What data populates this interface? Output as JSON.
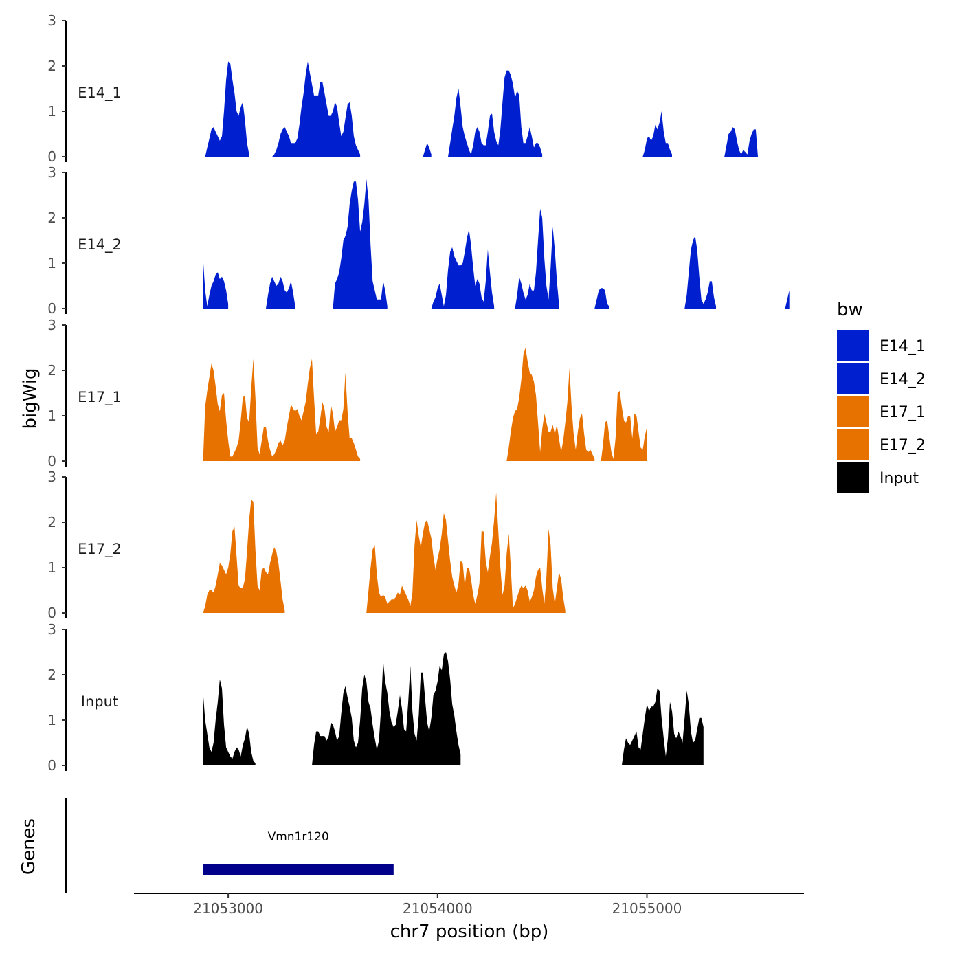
{
  "chart_data": {
    "type": "area",
    "xlabel": "chr7 position (bp)",
    "ylabel": "bigWig",
    "genes_label": "Genes",
    "xlim": [
      21052550,
      21055750
    ],
    "ylim": [
      0,
      3
    ],
    "y_ticks": [
      "0",
      "1",
      "2",
      "3"
    ],
    "x_ticks": [
      {
        "value": 21053000,
        "label": "21053000"
      },
      {
        "value": 21054000,
        "label": "21054000"
      },
      {
        "value": 21055000,
        "label": "21055000"
      }
    ],
    "legend": {
      "title": "bw",
      "entries": [
        "E14_1",
        "E14_2",
        "E17_1",
        "E17_2",
        "Input"
      ]
    },
    "colors": {
      "E14_1": "#0020D0",
      "E14_2": "#0020D0",
      "E17_1": "#E87200",
      "E17_2": "#E87200",
      "Input": "#000000",
      "gene": "#00008B"
    },
    "x_start": 21052880,
    "x_step": 10,
    "series": [
      {
        "name": "E14_1",
        "label": "E14_1",
        "segments": [
          {
            "start": 21052890,
            "values": [
              0,
              0.2,
              0.4,
              0.6,
              0.65,
              0.55,
              0.45,
              0.35,
              0.45,
              1.0,
              1.7,
              2.1,
              2.05,
              1.7,
              1.4,
              1.0,
              0.9,
              1.1,
              1.2,
              0.8,
              0.3,
              0.05
            ]
          },
          {
            "start": 21053210,
            "values": [
              0,
              0.05,
              0.15,
              0.3,
              0.5,
              0.6,
              0.65,
              0.55,
              0.45,
              0.3,
              0.3,
              0.3,
              0.4,
              0.7,
              1.1,
              1.4,
              1.8,
              2.1,
              1.85,
              1.6,
              1.35,
              1.35,
              1.35,
              1.65,
              1.65,
              1.4,
              1.15,
              0.9,
              0.9,
              1.0,
              1.2,
              1.1,
              0.75,
              0.45,
              0.55,
              0.85,
              1.15,
              1.2,
              0.9,
              0.45,
              0.25,
              0.15,
              0.05
            ]
          },
          {
            "start": 21053930,
            "values": [
              0,
              0.15,
              0.3,
              0.2,
              0.05
            ]
          },
          {
            "start": 21054050,
            "values": [
              0,
              0.3,
              0.6,
              0.9,
              1.3,
              1.5,
              1.1,
              0.65,
              0.45,
              0.3,
              0.15,
              0.05,
              0.25,
              0.55,
              0.65,
              0.55,
              0.3,
              0.25,
              0.25,
              0.55,
              0.9,
              0.95,
              0.55,
              0.35,
              0.25,
              0.6,
              1.2,
              1.75,
              1.9,
              1.9,
              1.8,
              1.6,
              1.3,
              1.45,
              1.35,
              0.65,
              0.3,
              0.3,
              0.45,
              0.65,
              0.45,
              0.2,
              0.3,
              0.3,
              0.2,
              0.05
            ]
          },
          {
            "start": 21054980,
            "values": [
              0,
              0.15,
              0.4,
              0.45,
              0.35,
              0.45,
              0.7,
              0.6,
              0.75,
              1.0,
              0.55,
              0.3,
              0.3,
              0.15,
              0.05
            ]
          },
          {
            "start": 21055370,
            "values": [
              0,
              0.25,
              0.5,
              0.55,
              0.65,
              0.6,
              0.35,
              0.15,
              0.05,
              0.15,
              0.1,
              0.05,
              0.35,
              0.5,
              0.6,
              0.6,
              0
            ]
          }
        ]
      },
      {
        "name": "E14_2",
        "label": "E14_2",
        "segments": [
          {
            "start": 21052880,
            "values": [
              1.1,
              0.4,
              0.05,
              0.3,
              0.5,
              0.6,
              0.75,
              0.8,
              0.65,
              0.7,
              0.6,
              0.4,
              0.1
            ]
          },
          {
            "start": 21053180,
            "values": [
              0,
              0.3,
              0.55,
              0.7,
              0.6,
              0.5,
              0.55,
              0.7,
              0.6,
              0.4,
              0.35,
              0.45,
              0.6,
              0.35,
              0.05
            ]
          },
          {
            "start": 21053500,
            "values": [
              0,
              0.55,
              0.65,
              0.8,
              1.1,
              1.5,
              1.6,
              1.8,
              2.3,
              2.6,
              2.8,
              2.8,
              2.4,
              1.7,
              1.9,
              2.3,
              2.85,
              2.4,
              1.4,
              0.6,
              0.4,
              0.2,
              0.2,
              0.2,
              0.6,
              0.4,
              0.05
            ]
          },
          {
            "start": 21053970,
            "values": [
              0,
              0.15,
              0.25,
              0.45,
              0.55,
              0.3,
              0.05,
              0.3,
              0.85,
              1.25,
              1.35,
              1.15,
              1.05,
              0.95,
              0.95,
              1.0,
              1.25,
              1.55,
              1.75,
              1.4,
              0.9,
              0.5,
              0.65,
              0.55,
              0.25,
              0.15,
              0.6,
              1.3,
              0.8,
              0.35,
              0.05
            ]
          },
          {
            "start": 21054370,
            "values": [
              0,
              0.3,
              0.7,
              0.55,
              0.35,
              0.2,
              0.3,
              0.55,
              0.4,
              0.4,
              0.8,
              1.5,
              2.2,
              2.0,
              1.1,
              0.5,
              0.2,
              0.9,
              1.8,
              1.3,
              0.6,
              0.1
            ]
          },
          {
            "start": 21054750,
            "values": [
              0,
              0.2,
              0.4,
              0.45,
              0.45,
              0.4,
              0.1,
              0.05
            ]
          },
          {
            "start": 21055180,
            "values": [
              0,
              0.3,
              0.8,
              1.3,
              1.5,
              1.6,
              1.3,
              0.7,
              0.2,
              0.1,
              0.2,
              0.35,
              0.6,
              0.6,
              0.25,
              0.05
            ]
          },
          {
            "start": 21055660,
            "values": [
              0,
              0.2,
              0.4
            ]
          }
        ]
      },
      {
        "name": "E17_1",
        "label": "E17_1",
        "segments": [
          {
            "start": 21052880,
            "values": [
              0,
              1.2,
              1.55,
              1.85,
              2.15,
              2.0,
              1.65,
              1.25,
              1.1,
              1.45,
              1.5,
              0.9,
              0.45,
              0.1,
              0.1,
              0.2,
              0.3,
              0.45,
              0.9,
              1.4,
              1.45,
              0.95,
              0.85,
              1.6,
              2.25,
              1.4,
              0.3,
              0.15,
              0.45,
              0.75,
              0.75,
              0.45,
              0.25,
              0.1,
              0.15,
              0.25,
              0.4,
              0.45,
              0.35,
              0.45,
              0.75,
              1.0,
              1.25,
              1.15,
              1.1,
              1.15,
              1.0,
              0.9,
              1.1,
              1.3,
              1.7,
              2.05,
              2.25,
              1.4,
              0.6,
              0.65,
              0.95,
              1.3,
              1.15,
              0.75,
              0.65,
              1.25,
              1.05,
              0.65,
              0.75,
              0.9,
              0.9,
              1.15,
              1.95,
              1.1,
              0.5,
              0.5,
              0.4,
              0.25,
              0.1,
              0.05
            ]
          },
          {
            "start": 21054330,
            "values": [
              0,
              0.3,
              0.65,
              0.95,
              1.1,
              1.15,
              1.4,
              1.8,
              2.35,
              2.5,
              2.2,
              1.95,
              1.9,
              1.75,
              1.45,
              0.85,
              0.2,
              0.7,
              1.05,
              0.85,
              0.65,
              0.65,
              0.8,
              0.6,
              0.8,
              0.5,
              0.2,
              0.45,
              0.85,
              1.3,
              2.05,
              1.2,
              0.6,
              0.25,
              0.65,
              0.95,
              1.05,
              0.6,
              0.25,
              0.2,
              0.25,
              0.15,
              0.05
            ]
          },
          {
            "start": 21054780,
            "values": [
              0,
              0.35,
              0.85,
              0.9,
              0.55,
              0.2,
              0.05,
              0.5,
              1.5,
              1.55,
              1.2,
              0.9,
              0.85,
              1.0,
              1.0,
              0.5,
              1.05,
              1.0,
              0.65,
              0.3,
              0.25,
              0.55,
              0.75
            ]
          }
        ]
      },
      {
        "name": "E17_2",
        "label": "E17_2",
        "segments": [
          {
            "start": 21052880,
            "values": [
              0,
              0.15,
              0.4,
              0.5,
              0.5,
              0.45,
              0.6,
              0.85,
              1.1,
              1.05,
              0.95,
              0.85,
              1.0,
              1.3,
              1.8,
              1.9,
              1.25,
              0.6,
              0.55,
              0.55,
              0.75,
              1.35,
              2.05,
              2.5,
              2.45,
              1.4,
              0.6,
              0.5,
              0.95,
              1.0,
              0.9,
              0.85,
              1.1,
              1.3,
              1.45,
              1.35,
              1.1,
              0.7,
              0.3,
              0.05
            ]
          },
          {
            "start": 21053660,
            "values": [
              0,
              0.5,
              1.0,
              1.4,
              1.5,
              0.85,
              0.45,
              0.35,
              0.4,
              0.35,
              0.2,
              0.25,
              0.3,
              0.3,
              0.35,
              0.45,
              0.4,
              0.6,
              0.5,
              0.4,
              0.3,
              0.15,
              0.45,
              1.5,
              2.05,
              1.7,
              1.45,
              1.75,
              2.0,
              2.05,
              1.85,
              1.65,
              1.25,
              0.95,
              1.2,
              1.4,
              1.75,
              2.2,
              2.05,
              1.6,
              1.15,
              0.8,
              0.6,
              0.45,
              0.65,
              1.15,
              1.1,
              0.6,
              1.0,
              1.0,
              0.75,
              0.4,
              0.2,
              0.4,
              0.65,
              1.8,
              1.8,
              1.15,
              0.9,
              1.25,
              1.55,
              2.05,
              2.65,
              1.8,
              1.0,
              0.4,
              0.6,
              1.3,
              1.75,
              1.0,
              0.1,
              0.2,
              0.35,
              0.5,
              0.6,
              0.55,
              0.6,
              0.5,
              0.25,
              0.35,
              0.5,
              0.8,
              0.95,
              1.0,
              0.55,
              0.2,
              0.8,
              1.85,
              1.5,
              0.55,
              0.2,
              0.55,
              0.9,
              0.75,
              0.35,
              0.05
            ]
          }
        ]
      },
      {
        "name": "Input",
        "label": "Input",
        "segments": [
          {
            "start": 21052880,
            "values": [
              1.6,
              1.0,
              0.7,
              0.4,
              0.3,
              0.5,
              1.0,
              1.4,
              1.9,
              1.7,
              0.9,
              0.4,
              0.3,
              0.2,
              0.15,
              0.3,
              0.4,
              0.35,
              0.2,
              0.45,
              0.6,
              0.85,
              0.7,
              0.3,
              0.1,
              0.05
            ]
          },
          {
            "start": 21053400,
            "values": [
              0,
              0.45,
              0.75,
              0.75,
              0.65,
              0.65,
              0.65,
              0.55,
              0.65,
              0.95,
              0.9,
              0.75,
              0.55,
              0.65,
              1.15,
              1.6,
              1.75,
              1.5,
              1.3,
              1.05,
              0.55,
              0.4,
              0.5,
              1.0,
              1.7,
              2.0,
              1.85,
              1.4,
              1.25,
              0.9,
              0.6,
              0.35,
              0.55,
              1.25,
              2.3,
              1.85,
              1.6,
              1.2,
              0.95,
              0.85,
              0.9,
              1.2,
              1.55,
              1.25,
              0.8,
              0.75,
              1.4,
              2.2,
              1.2,
              0.7,
              0.55,
              1.1,
              2.05,
              2.05,
              1.5,
              0.95,
              0.75,
              1.05,
              1.55,
              1.65,
              1.85,
              2.2,
              2.1,
              2.45,
              2.5,
              2.3,
              1.9,
              1.35,
              1.1,
              0.75,
              0.45,
              0.25
            ]
          },
          {
            "start": 21054880,
            "values": [
              0,
              0.35,
              0.6,
              0.5,
              0.45,
              0.55,
              0.65,
              0.75,
              0.4,
              0.35,
              0.7,
              1.05,
              1.35,
              1.2,
              1.3,
              1.3,
              1.4,
              1.7,
              1.65,
              1.05,
              0.6,
              0.2,
              0.6,
              1.4,
              1.2,
              0.7,
              0.6,
              0.75,
              0.65,
              0.5,
              1.05,
              1.65,
              1.35,
              0.75,
              0.5,
              0.55,
              0.8,
              1.05,
              1.05,
              0.85
            ]
          }
        ]
      }
    ],
    "genes": [
      {
        "name": "Vmn1r120",
        "start": 21052880,
        "end": 21053790
      }
    ]
  }
}
